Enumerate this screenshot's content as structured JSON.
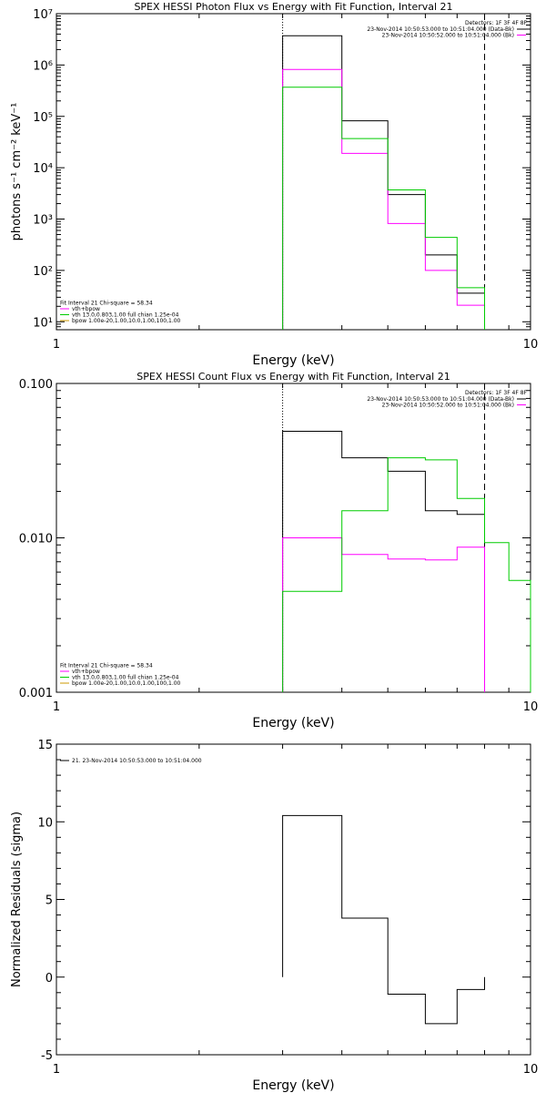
{
  "colors": {
    "data": "#000000",
    "total_fit": "#ff00ff",
    "vth": "#00cc00",
    "bpow": "#cc9900",
    "axes": "#000000"
  },
  "chart_data": [
    {
      "type": "line",
      "title": "SPEX HESSI Photon Flux vs Energy with Fit Function, Interval 21",
      "xlabel": "Energy (keV)",
      "ylabel": "photons s⁻¹ cm⁻² keV⁻¹",
      "xscale": "log",
      "yscale": "log",
      "xlim": [
        1,
        10
      ],
      "ylim": [
        7,
        10000000
      ],
      "xticks": [
        {
          "v": 1,
          "label": "1"
        },
        {
          "v": 10,
          "label": "10"
        }
      ],
      "yticks": [
        {
          "v": 10,
          "label": "10¹"
        },
        {
          "v": 100,
          "label": "10²"
        },
        {
          "v": 1000,
          "label": "10³"
        },
        {
          "v": 10000,
          "label": "10⁴"
        },
        {
          "v": 100000,
          "label": "10⁵"
        },
        {
          "v": 1000000,
          "label": "10⁶"
        },
        {
          "v": 10000000,
          "label": "10⁷"
        }
      ],
      "vlines": [
        {
          "x": 3.0,
          "style": "dotted"
        },
        {
          "x": 8.0,
          "style": "dashed"
        }
      ],
      "series": [
        {
          "color": "#000000",
          "edges": [
            3,
            4,
            5,
            6,
            7,
            8
          ],
          "values": [
            3700000,
            82000,
            3000,
            200,
            36
          ]
        },
        {
          "color": "#ff00ff",
          "edges": [
            3,
            4,
            5,
            6,
            7,
            8
          ],
          "values": [
            820000,
            19000,
            820,
            100,
            21
          ]
        },
        {
          "color": "#00cc00",
          "edges": [
            3,
            4,
            5,
            6,
            7,
            8
          ],
          "values": [
            370000,
            37000,
            3700,
            440,
            46
          ]
        }
      ],
      "legend_right": {
        "header": "Detectors: 1F 3F 4F 8F",
        "items": [
          {
            "text": "23-Nov-2014 10:50:53.000 to 10:51:04.000 (Data-Bk)",
            "color": "#000000"
          },
          {
            "text": "23-Nov-2014 10:50:52.000 to 10:51:04.000 (Bk)",
            "color": "#ff00ff"
          }
        ]
      },
      "legend_left": {
        "header": "Fit Interval 21   Chi-square = 58.34",
        "items": [
          {
            "text": "vth+bpow",
            "color": "#ff00ff"
          },
          {
            "text": "vth 13.0,0.803,1.00  full chian 1.25e-04",
            "color": "#00cc00"
          },
          {
            "text": "bpow 1.00e-20,1.00,10.0,1.00,100,1.00",
            "color": "#cc9900"
          }
        ]
      }
    },
    {
      "type": "line",
      "title": "SPEX HESSI Count Flux vs Energy with Fit Function, Interval 21",
      "xlabel": "Energy (keV)",
      "ylabel": "",
      "xscale": "log",
      "yscale": "log",
      "xlim": [
        1,
        10
      ],
      "ylim": [
        0.001,
        0.1
      ],
      "xticks": [
        {
          "v": 1,
          "label": "1"
        },
        {
          "v": 10,
          "label": "10"
        }
      ],
      "yticks": [
        {
          "v": 0.001,
          "label": "0.001"
        },
        {
          "v": 0.01,
          "label": "0.010"
        },
        {
          "v": 0.1,
          "label": "0.100"
        }
      ],
      "vlines": [
        {
          "x": 3.0,
          "style": "dotted"
        },
        {
          "x": 8.0,
          "style": "dashed"
        }
      ],
      "series": [
        {
          "color": "#000000",
          "edges": [
            3,
            4,
            5,
            6,
            7,
            8
          ],
          "values": [
            0.049,
            0.033,
            0.027,
            0.015,
            0.0142
          ]
        },
        {
          "color": "#ff00ff",
          "edges": [
            3,
            4,
            5,
            6,
            7,
            8
          ],
          "values": [
            0.01,
            0.0078,
            0.0073,
            0.0072,
            0.0087
          ]
        },
        {
          "color": "#00cc00",
          "edges": [
            3,
            4,
            5,
            6,
            7,
            8,
            9,
            10
          ],
          "values": [
            0.0045,
            0.015,
            0.033,
            0.032,
            0.018,
            0.0093,
            0.0053
          ]
        }
      ],
      "legend_right": {
        "header": "Detectors: 1F 3F 4F 8F",
        "items": [
          {
            "text": "23-Nov-2014 10:50:53.000 to 10:51:04.000 (Data-Bk)",
            "color": "#000000"
          },
          {
            "text": "23-Nov-2014 10:50:52.000 to 10:51:04.000 (Bk)",
            "color": "#ff00ff"
          }
        ]
      },
      "legend_left": {
        "header": "Fit Interval 21   Chi-square = 58.34",
        "items": [
          {
            "text": "vth+bpow",
            "color": "#ff00ff"
          },
          {
            "text": "vth 13.0,0.803,1.00  full chian 1.25e-04",
            "color": "#00cc00"
          },
          {
            "text": "bpow 1.00e-20,1.00,10.0,1.00,100,1.00",
            "color": "#cc9900"
          }
        ]
      }
    },
    {
      "type": "line",
      "title": "",
      "xlabel": "Energy (keV)",
      "ylabel": "Normalized Residuals (sigma)",
      "xscale": "log",
      "yscale": "linear",
      "xlim": [
        1,
        10
      ],
      "ylim": [
        -5,
        15
      ],
      "xticks": [
        {
          "v": 1,
          "label": "1"
        },
        {
          "v": 10,
          "label": "10"
        }
      ],
      "yticks": [
        {
          "v": -5,
          "label": "-5"
        },
        {
          "v": 0,
          "label": "0"
        },
        {
          "v": 5,
          "label": "5"
        },
        {
          "v": 10,
          "label": "10"
        },
        {
          "v": 15,
          "label": "15"
        }
      ],
      "vlines": [],
      "series": [
        {
          "color": "#000000",
          "edges": [
            3,
            4,
            5,
            6,
            7,
            8
          ],
          "values": [
            10.4,
            3.8,
            -1.1,
            -3.0,
            -0.8
          ]
        }
      ],
      "legend_right": null,
      "legend_left": {
        "header": "",
        "items": [
          {
            "text": "21. 23-Nov-2014 10:50:53.000 to 10:51:04.000",
            "color": "#000000"
          }
        ]
      }
    }
  ]
}
